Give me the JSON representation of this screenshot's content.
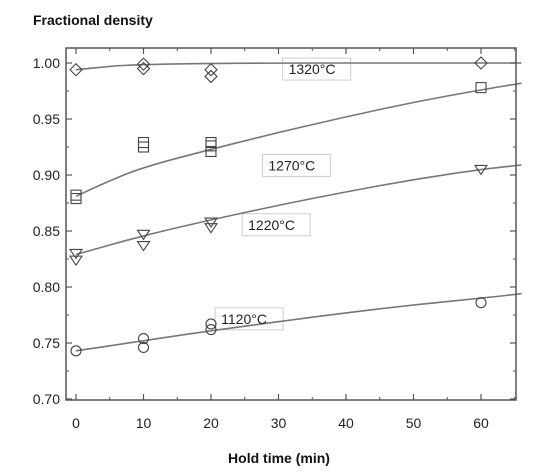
{
  "chart_data": {
    "type": "scatter",
    "ylabel": "Fractional density",
    "xlabel": "Hold time (min)",
    "xlim": [
      -1.5,
      66
    ],
    "ylim": [
      0.7,
      1.015
    ],
    "xticks": [
      0,
      10,
      20,
      30,
      40,
      50,
      60
    ],
    "yticks": [
      0.7,
      0.75,
      0.8,
      0.85,
      0.9,
      0.95,
      1.0
    ],
    "ytick_labels": [
      "0.70",
      "0.75",
      "0.80",
      "0.85",
      "0.90",
      "0.95",
      "1.00"
    ],
    "grid": false,
    "series": [
      {
        "name": "1320°C",
        "marker": "diamond",
        "points": [
          [
            0,
            0.994
          ],
          [
            10,
            0.995
          ],
          [
            10,
            0.999
          ],
          [
            20,
            0.988
          ],
          [
            20,
            0.994
          ],
          [
            60,
            1.0
          ]
        ],
        "fit": [
          [
            0,
            0.994
          ],
          [
            10,
            1.0
          ],
          [
            66,
            1.0
          ]
        ]
      },
      {
        "name": "1270°C",
        "marker": "square",
        "points": [
          [
            0,
            0.879
          ],
          [
            0,
            0.882
          ],
          [
            10,
            0.925
          ],
          [
            10,
            0.929
          ],
          [
            20,
            0.921
          ],
          [
            20,
            0.926
          ],
          [
            20,
            0.929
          ],
          [
            60,
            0.978
          ]
        ],
        "fit": [
          [
            0,
            0.881
          ],
          [
            5,
            0.895
          ],
          [
            10,
            0.907
          ],
          [
            20,
            0.923
          ],
          [
            30,
            0.938
          ],
          [
            40,
            0.952
          ],
          [
            50,
            0.965
          ],
          [
            60,
            0.976
          ],
          [
            66,
            0.982
          ]
        ]
      },
      {
        "name": "1220°C",
        "marker": "triangle-down",
        "points": [
          [
            0,
            0.824
          ],
          [
            0,
            0.83
          ],
          [
            10,
            0.837
          ],
          [
            10,
            0.847
          ],
          [
            20,
            0.853
          ],
          [
            20,
            0.858
          ],
          [
            60,
            0.905
          ]
        ],
        "fit": [
          [
            0,
            0.829
          ],
          [
            10,
            0.846
          ],
          [
            20,
            0.86
          ],
          [
            30,
            0.873
          ],
          [
            40,
            0.885
          ],
          [
            50,
            0.896
          ],
          [
            60,
            0.905
          ],
          [
            66,
            0.909
          ]
        ]
      },
      {
        "name": "1120°C",
        "marker": "circle",
        "points": [
          [
            0,
            0.743
          ],
          [
            10,
            0.746
          ],
          [
            10,
            0.754
          ],
          [
            20,
            0.762
          ],
          [
            20,
            0.767
          ],
          [
            60,
            0.786
          ]
        ],
        "fit": [
          [
            0,
            0.743
          ],
          [
            10,
            0.752
          ],
          [
            20,
            0.761
          ],
          [
            30,
            0.769
          ],
          [
            40,
            0.777
          ],
          [
            50,
            0.784
          ],
          [
            60,
            0.79
          ],
          [
            66,
            0.794
          ]
        ]
      }
    ],
    "labels": [
      {
        "text": "1320°C",
        "x": 31.5,
        "y": 0.991
      },
      {
        "text": "1270°C",
        "x": 28.5,
        "y": 0.905
      },
      {
        "text": "1220°C",
        "x": 25.5,
        "y": 0.852
      },
      {
        "text": "1120°C",
        "x": 21.5,
        "y": 0.768
      }
    ]
  }
}
